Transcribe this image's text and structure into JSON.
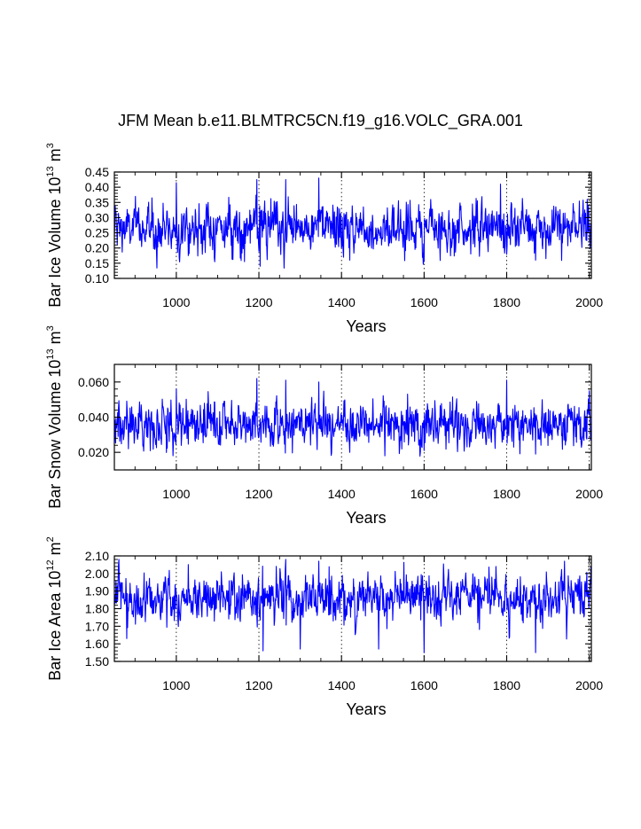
{
  "page_title": "JFM Mean b.e11.BLMTRC5CN.f19_g16.VOLC_GRA.001",
  "colors": {
    "series": "#0000ff",
    "axis": "#000000",
    "grid": "#000000"
  },
  "chart_data": [
    {
      "type": "line",
      "ylabel": {
        "text": "Bar Ice Volume 10",
        "sup1": "13",
        "mid": " m",
        "sup2": "3"
      },
      "xlabel": "Years",
      "xlim": [
        850,
        2005
      ],
      "ylim": [
        0.1,
        0.45
      ],
      "x_ticks": [
        1000,
        1200,
        1400,
        1600,
        1800,
        2000
      ],
      "x_tick_labels": [
        "1000",
        "1200",
        "1400",
        "1600",
        "1800",
        "2000"
      ],
      "y_ticks": [
        0.1,
        0.15,
        0.2,
        0.25,
        0.3,
        0.35,
        0.4,
        0.45
      ],
      "y_tick_labels": [
        "0.10",
        "0.15",
        "0.20",
        "0.25",
        "0.30",
        "0.35",
        "0.40",
        "0.45"
      ],
      "vertical_gridlines": [
        1000,
        1200,
        1400,
        1600,
        1800,
        2000
      ],
      "series": {
        "x_start": 850,
        "x_step": 1,
        "mean": 0.265,
        "sd": 0.04,
        "extremes": [
          [
            941,
            0.365
          ],
          [
            1000,
            0.415
          ],
          [
            1195,
            0.425
          ],
          [
            1203,
            0.14
          ],
          [
            1265,
            0.425
          ],
          [
            1345,
            0.43
          ],
          [
            1420,
            0.16
          ],
          [
            1600,
            0.155
          ],
          [
            1785,
            0.41
          ],
          [
            1870,
            0.16
          ],
          [
            1995,
            0.36
          ]
        ]
      }
    },
    {
      "type": "line",
      "ylabel": {
        "text": "Bar Snow Volume 10",
        "sup1": "13",
        "mid": " m",
        "sup2": "3"
      },
      "xlabel": "Years",
      "xlim": [
        850,
        2005
      ],
      "ylim": [
        0.01,
        0.07
      ],
      "x_ticks": [
        1000,
        1200,
        1400,
        1600,
        1800,
        2000
      ],
      "x_tick_labels": [
        "1000",
        "1200",
        "1400",
        "1600",
        "1800",
        "2000"
      ],
      "y_ticks": [
        0.02,
        0.04,
        0.06
      ],
      "y_tick_labels": [
        "0.020",
        "0.040",
        "0.060"
      ],
      "vertical_gridlines": [
        1000,
        1200,
        1400,
        1600,
        1800,
        2000
      ],
      "series": {
        "x_start": 850,
        "x_step": 1,
        "mean": 0.036,
        "sd": 0.0065,
        "extremes": [
          [
            1000,
            0.056
          ],
          [
            1195,
            0.062
          ],
          [
            1265,
            0.061
          ],
          [
            1345,
            0.06
          ],
          [
            1420,
            0.02
          ],
          [
            1600,
            0.021
          ],
          [
            1800,
            0.061
          ],
          [
            1870,
            0.019
          ],
          [
            2000,
            0.055
          ]
        ]
      }
    },
    {
      "type": "line",
      "ylabel": {
        "text": "Bar Ice Area 10",
        "sup1": "12",
        "mid": " m",
        "sup2": "2"
      },
      "xlabel": "Years",
      "xlim": [
        850,
        2005
      ],
      "ylim": [
        1.5,
        2.1
      ],
      "x_ticks": [
        1000,
        1200,
        1400,
        1600,
        1800,
        2000
      ],
      "x_tick_labels": [
        "1000",
        "1200",
        "1400",
        "1600",
        "1800",
        "2000"
      ],
      "y_ticks": [
        1.5,
        1.6,
        1.7,
        1.8,
        1.9,
        2.0,
        2.1
      ],
      "y_tick_labels": [
        "1.50",
        "1.60",
        "1.70",
        "1.80",
        "1.90",
        "2.00",
        "2.10"
      ],
      "vertical_gridlines": [
        1000,
        1200,
        1400,
        1600,
        1800,
        2000
      ],
      "series": {
        "x_start": 850,
        "x_step": 1,
        "mean": 1.86,
        "sd": 0.07,
        "extremes": [
          [
            880,
            1.63
          ],
          [
            1210,
            1.56
          ],
          [
            1265,
            2.08
          ],
          [
            1300,
            1.57
          ],
          [
            1345,
            2.07
          ],
          [
            1490,
            1.57
          ],
          [
            1600,
            1.55
          ],
          [
            1870,
            1.55
          ],
          [
            1940,
            2.07
          ]
        ]
      }
    }
  ]
}
